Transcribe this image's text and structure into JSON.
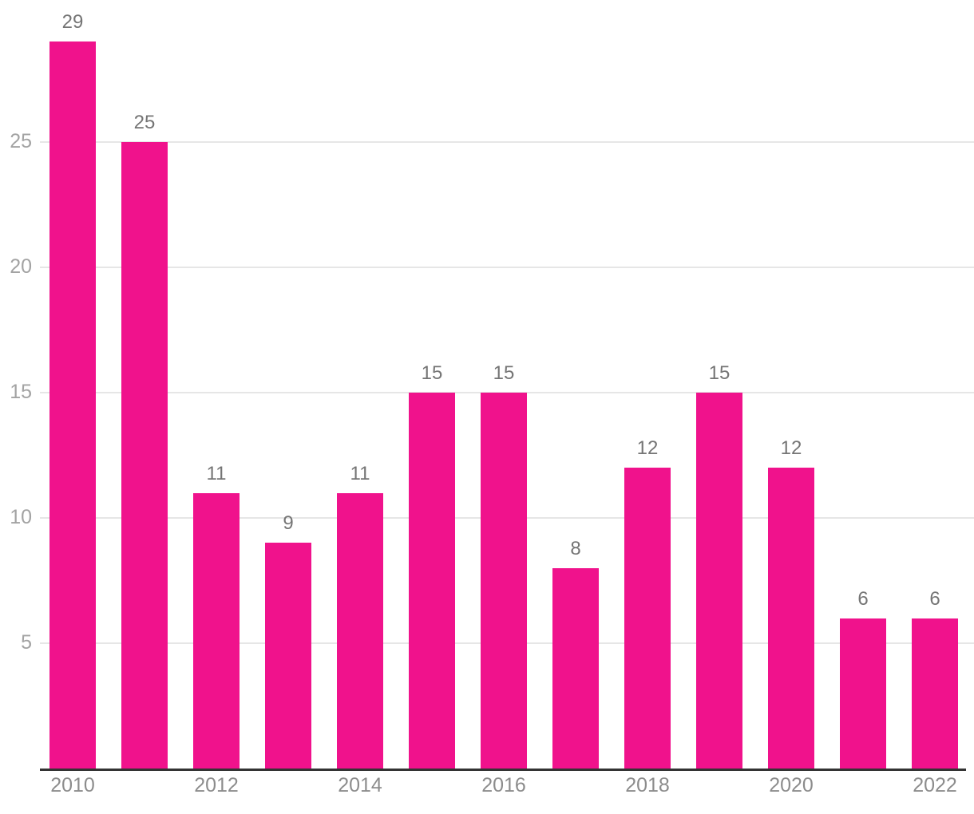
{
  "chart_data": {
    "type": "bar",
    "categories": [
      "2010",
      "2011",
      "2012",
      "2013",
      "2014",
      "2015",
      "2016",
      "2017",
      "2018",
      "2019",
      "2020",
      "2021",
      "2022"
    ],
    "values": [
      29,
      25,
      11,
      9,
      11,
      15,
      15,
      8,
      12,
      15,
      12,
      6,
      6
    ],
    "series": [
      {
        "name": "value",
        "values": [
          29,
          25,
          11,
          9,
          11,
          15,
          15,
          8,
          12,
          15,
          12,
          6,
          6
        ]
      }
    ],
    "data_labels": [
      "29",
      "25",
      "11",
      "9",
      "11",
      "15",
      "15",
      "8",
      "12",
      "15",
      "12",
      "6",
      "6"
    ],
    "title": "",
    "subtitle": "",
    "xlabel": "",
    "ylabel": "",
    "ylim": [
      0,
      29
    ],
    "y_ticks": [
      5,
      10,
      15,
      20,
      25
    ],
    "y_tick_labels": [
      "5",
      "10",
      "15",
      "20",
      "25"
    ],
    "x_tick_labels": [
      "2010",
      "2012",
      "2014",
      "2016",
      "2018",
      "2020",
      "2022"
    ],
    "grid": "horizontal gridlines at y ticks, drawn behind bars",
    "legend": "none",
    "data_labels_position": "above each bar",
    "colors": {
      "bar": "#F0128C",
      "gridline": "#E6E6E6",
      "axis_line": "#333333",
      "y_tick_label": "#A3A3A3",
      "x_tick_label": "#8C8C8C",
      "data_label": "#757575",
      "background": "#FFFFFF"
    }
  }
}
